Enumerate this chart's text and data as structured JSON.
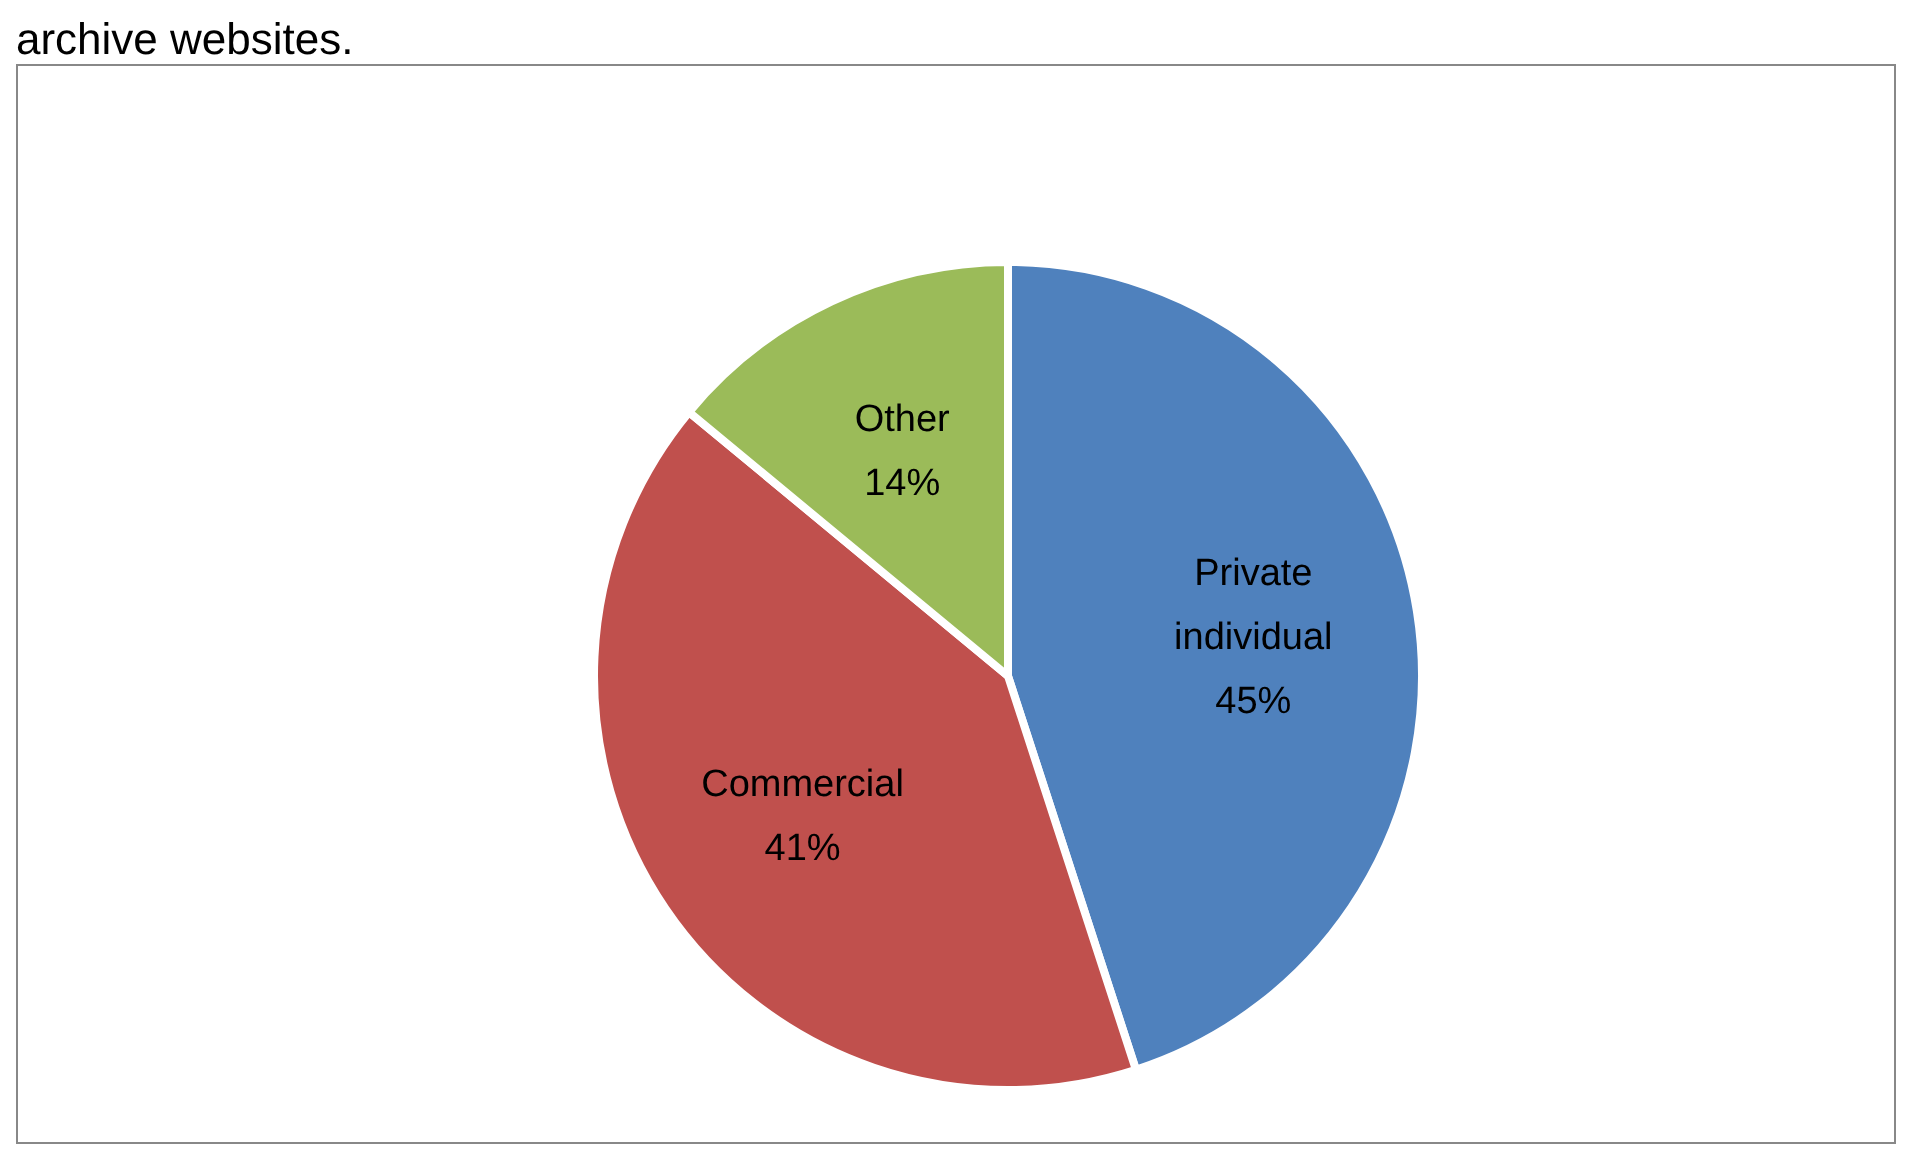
{
  "chart_data": {
    "type": "pie",
    "annotations": [
      "archive websites."
    ],
    "categories": [
      "Private individual",
      "Commercial",
      "Other"
    ],
    "values": [
      45,
      41,
      14
    ],
    "colors": [
      "#4f81bd",
      "#c0504d",
      "#9bbb59"
    ],
    "value_labels": [
      "45%",
      "41%",
      "14%"
    ]
  }
}
